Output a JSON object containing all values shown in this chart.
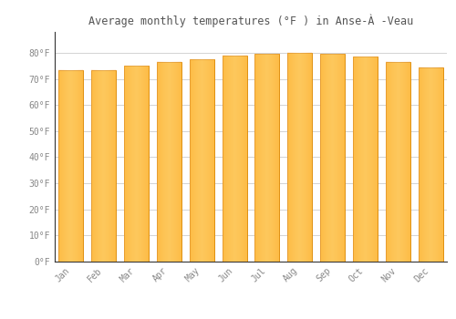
{
  "title": "Average monthly temperatures (°F ) in Anse-À -Veau",
  "months": [
    "Jan",
    "Feb",
    "Mar",
    "Apr",
    "May",
    "Jun",
    "Jul",
    "Aug",
    "Sep",
    "Oct",
    "Nov",
    "Dec"
  ],
  "values": [
    73.5,
    73.5,
    75.0,
    76.5,
    77.5,
    79.0,
    79.5,
    80.0,
    79.5,
    78.5,
    76.5,
    74.5
  ],
  "bar_color_main": "#FDB92E",
  "bar_color_edge": "#E09010",
  "background_color": "#FFFFFF",
  "grid_color": "#CCCCCC",
  "text_color": "#888888",
  "title_color": "#555555",
  "ylim": [
    0,
    88
  ],
  "yticks": [
    0,
    10,
    20,
    30,
    40,
    50,
    60,
    70,
    80
  ],
  "ytick_labels": [
    "0°F",
    "10°F",
    "20°F",
    "30°F",
    "40°F",
    "50°F",
    "60°F",
    "70°F",
    "80°F"
  ],
  "figsize": [
    5.0,
    3.5
  ],
  "dpi": 100
}
